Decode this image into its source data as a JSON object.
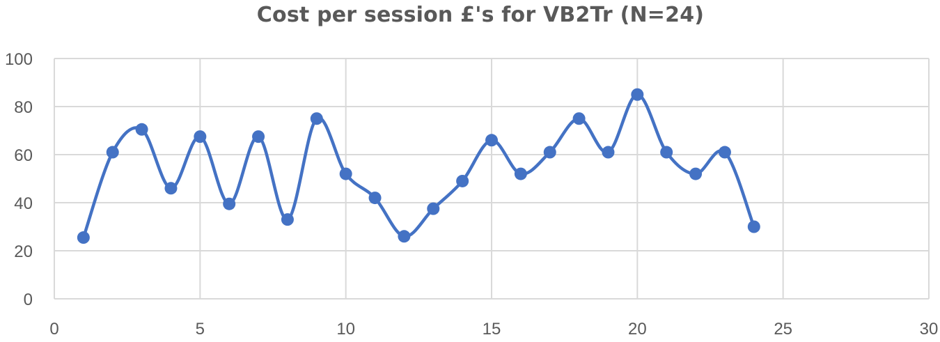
{
  "chart_data": {
    "type": "scatter",
    "style": "smooth-line-with-markers",
    "title": "Cost per session £'s for VB2Tr (N=24)",
    "xlabel": "",
    "ylabel": "",
    "xlim": [
      0,
      30
    ],
    "ylim": [
      0,
      100
    ],
    "x_ticks": [
      0,
      5,
      10,
      15,
      20,
      25,
      30
    ],
    "y_ticks": [
      0,
      20,
      40,
      60,
      80,
      100
    ],
    "grid": true,
    "legend": "none",
    "series_color": "#4472C4",
    "grid_color": "#d9d9d9",
    "series": [
      {
        "x": [
          1,
          2,
          3,
          4,
          5,
          6,
          7,
          8,
          9,
          10,
          11,
          12,
          13,
          14,
          15,
          16,
          17,
          18,
          19,
          20,
          21,
          22,
          23,
          24
        ],
        "values": [
          25.5,
          61,
          70.5,
          46,
          67.5,
          39.5,
          67.5,
          33,
          75,
          52,
          42,
          26,
          37.5,
          49,
          66,
          52,
          61,
          75,
          61,
          85,
          61,
          52,
          61,
          30
        ]
      }
    ]
  }
}
